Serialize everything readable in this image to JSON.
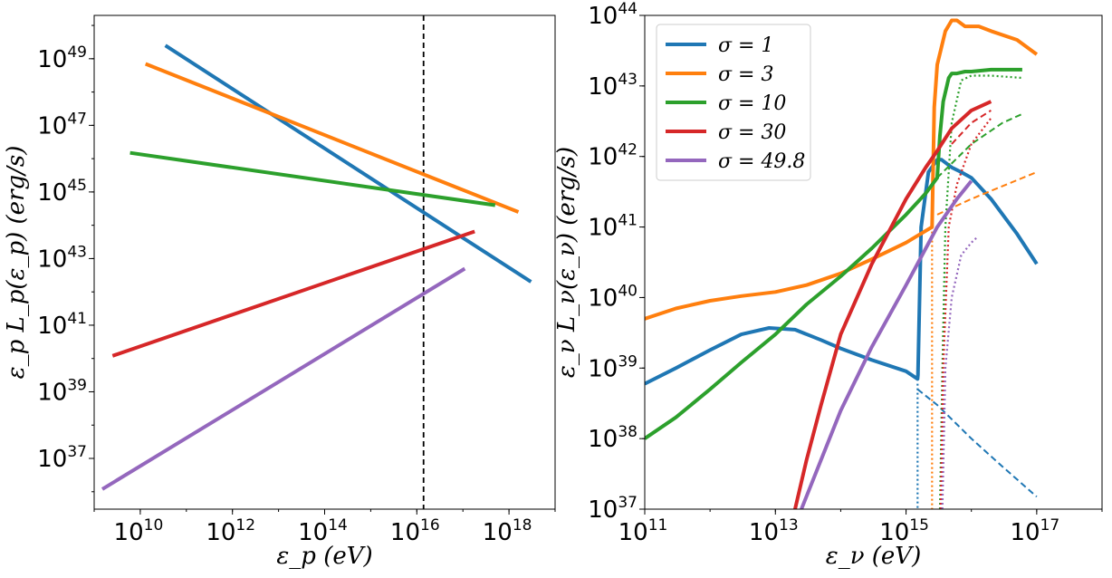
{
  "chart_data": [
    {
      "type": "line",
      "xscale": "log",
      "yscale": "log",
      "xlim": [
        1000000000.0,
        1e+19
      ],
      "ylim": [
        3e+35,
        2e+50
      ],
      "xlabel": "ε_p  (eV)",
      "ylabel": "ε_p L_p(ε_p) (erg/s)",
      "xticks": [
        {
          "base": "10",
          "exp": "10",
          "v": 10000000000.0
        },
        {
          "base": "10",
          "exp": "12",
          "v": 1000000000000.0
        },
        {
          "base": "10",
          "exp": "14",
          "v": 100000000000000.0
        },
        {
          "base": "10",
          "exp": "16",
          "v": 1e+16
        },
        {
          "base": "10",
          "exp": "18",
          "v": 1e+18
        }
      ],
      "yticks": [
        {
          "base": "10",
          "exp": "37",
          "v": 1e+37
        },
        {
          "base": "10",
          "exp": "39",
          "v": 1e+39
        },
        {
          "base": "10",
          "exp": "41",
          "v": 1e+41
        },
        {
          "base": "10",
          "exp": "43",
          "v": 1e+43
        },
        {
          "base": "10",
          "exp": "45",
          "v": 1e+45
        },
        {
          "base": "10",
          "exp": "47",
          "v": 1e+47
        },
        {
          "base": "10",
          "exp": "49",
          "v": 1e+49
        }
      ],
      "vline": {
        "x": 1.4e+16,
        "style": "dashed",
        "color": "#000000"
      },
      "series": [
        {
          "color": "#1f77b4",
          "x": [
            35000000000.0,
            3e+18
          ],
          "y": [
            2.5e+49,
            2e+42
          ]
        },
        {
          "color": "#ff7f0e",
          "x": [
            13000000000.0,
            1.6e+18
          ],
          "y": [
            7e+48,
            2.5e+44
          ]
        },
        {
          "color": "#2ca02c",
          "x": [
            6000000000.0,
            5e+17
          ],
          "y": [
            1.5e+46,
            4e+44
          ]
        },
        {
          "color": "#d62728",
          "x": [
            2500000000.0,
            1.8e+17
          ],
          "y": [
            1.2e+40,
            6.5e+43
          ]
        },
        {
          "color": "#9467bd",
          "x": [
            1500000000.0,
            1.1e+17
          ],
          "y": [
            1.2e+36,
            5e+42
          ]
        }
      ]
    },
    {
      "type": "line",
      "xscale": "log",
      "yscale": "log",
      "xlim": [
        100000000000.0,
        1e+18
      ],
      "ylim": [
        1e+37,
        1e+44
      ],
      "xlabel": "ε_ν  (eV)",
      "ylabel": "ε_ν L_ν(ε_ν) (erg/s)",
      "xticks": [
        {
          "base": "10",
          "exp": "11",
          "v": 100000000000.0
        },
        {
          "base": "10",
          "exp": "13",
          "v": 10000000000000.0
        },
        {
          "base": "10",
          "exp": "15",
          "v": 1000000000000000.0
        },
        {
          "base": "10",
          "exp": "17",
          "v": 1e+17
        }
      ],
      "yticks": [
        {
          "base": "10",
          "exp": "37",
          "v": 1e+37
        },
        {
          "base": "10",
          "exp": "38",
          "v": 1e+38
        },
        {
          "base": "10",
          "exp": "39",
          "v": 1e+39
        },
        {
          "base": "10",
          "exp": "40",
          "v": 1e+40
        },
        {
          "base": "10",
          "exp": "41",
          "v": 1e+41
        },
        {
          "base": "10",
          "exp": "42",
          "v": 1e+42
        },
        {
          "base": "10",
          "exp": "43",
          "v": 1e+43
        },
        {
          "base": "10",
          "exp": "44",
          "v": 1e+44
        }
      ],
      "legend": {
        "location": "top-left",
        "entries": [
          {
            "label": "σ = 1",
            "color": "#1f77b4"
          },
          {
            "label": "σ = 3",
            "color": "#ff7f0e"
          },
          {
            "label": "σ = 10",
            "color": "#2ca02c"
          },
          {
            "label": "σ = 30",
            "color": "#d62728"
          },
          {
            "label": "σ = 49.8",
            "color": "#9467bd"
          }
        ]
      },
      "series": [
        {
          "color": "#1f77b4",
          "style": "solid",
          "x": [
            100000000000.0,
            300000000000.0,
            1000000000000.0,
            3000000000000.0,
            8000000000000.0,
            20000000000000.0,
            50000000000000.0,
            100000000000000.0,
            300000000000000.0,
            1000000000000000.0,
            1500000000000000.0,
            1520000000000000.0,
            1700000000000000.0,
            2200000000000000.0,
            3000000000000000.0,
            3500000000000000.0,
            5000000000000000.0,
            7000000000000000.0,
            1e+16,
            2e+16,
            5e+16,
            1e+17
          ],
          "y": [
            6e+38,
            1e+39,
            1.8e+39,
            3e+39,
            3.7e+39,
            3.5e+39,
            2.5e+39,
            1.9e+39,
            1.3e+39,
            9e+38,
            7e+38,
            8e+38,
            1e+41,
            6e+41,
            9e+41,
            9e+41,
            7e+41,
            6e+41,
            5e+41,
            2.5e+41,
            8e+40,
            3e+40
          ]
        },
        {
          "color": "#1f77b4",
          "style": "dashed",
          "x": [
            1500000000000000.0,
            3000000000000000.0,
            1e+16,
            3e+16,
            1e+17
          ],
          "y": [
            5e+38,
            3e+38,
            1e+38,
            4e+37,
            1.5e+37
          ]
        },
        {
          "color": "#1f77b4",
          "style": "dotted",
          "x": [
            1500000000000000.0,
            1500000000000000.0
          ],
          "y": [
            6e+38,
            1e+37
          ]
        },
        {
          "color": "#ff7f0e",
          "style": "solid",
          "x": [
            100000000000.0,
            300000000000.0,
            1000000000000.0,
            3000000000000.0,
            10000000000000.0,
            30000000000000.0,
            100000000000000.0,
            300000000000000.0,
            1000000000000000.0,
            2500000000000000.0,
            2700000000000000.0,
            3000000000000000.0,
            4000000000000000.0,
            5000000000000000.0,
            6000000000000000.0,
            8000000000000000.0,
            1e+16,
            1.3e+16,
            2e+16,
            5e+16,
            1e+17
          ],
          "y": [
            5e+39,
            7e+39,
            9e+39,
            1.05e+40,
            1.2e+40,
            1.5e+40,
            2.2e+40,
            3.5e+40,
            6e+40,
            1e+41,
            5e+42,
            2e+43,
            6e+43,
            8.5e+43,
            8.5e+43,
            7e+43,
            7e+43,
            7e+43,
            6e+43,
            4.5e+43,
            2.8e+43
          ]
        },
        {
          "color": "#ff7f0e",
          "style": "dashed",
          "x": [
            3000000000000000.0,
            1e+16,
            3e+16,
            1e+17
          ],
          "y": [
            1.5e+41,
            2.5e+41,
            3.8e+41,
            6e+41
          ]
        },
        {
          "color": "#ff7f0e",
          "style": "dotted",
          "x": [
            2500000000000000.0,
            2500000000000000.0
          ],
          "y": [
            1e+41,
            1e+37
          ]
        },
        {
          "color": "#2ca02c",
          "style": "solid",
          "x": [
            100000000000.0,
            300000000000.0,
            1000000000000.0,
            3000000000000.0,
            10000000000000.0,
            30000000000000.0,
            100000000000000.0,
            300000000000000.0,
            1000000000000000.0,
            2000000000000000.0,
            3000000000000000.0,
            3300000000000000.0,
            3700000000000000.0,
            4500000000000000.0,
            5000000000000000.0,
            6000000000000000.0,
            8000000000000000.0,
            1e+16,
            2e+16,
            6e+16
          ],
          "y": [
            1e+38,
            2e+38,
            5e+38,
            1.2e+39,
            3e+39,
            8e+39,
            2e+40,
            5e+40,
            1.5e+41,
            3e+41,
            5e+41,
            2e+42,
            6e+42,
            1.3e+43,
            1.5e+43,
            1.5e+43,
            1.6e+43,
            1.6e+43,
            1.7e+43,
            1.7e+43
          ]
        },
        {
          "color": "#2ca02c",
          "style": "dashed",
          "x": [
            3000000000000000.0,
            1e+16,
            3e+16,
            6e+16
          ],
          "y": [
            5e+41,
            1.5e+42,
            3e+42,
            4e+42
          ]
        },
        {
          "color": "#2ca02c",
          "style": "dotted",
          "x": [
            3300000000000000.0,
            3600000000000000.0,
            4000000000000000.0,
            5000000000000000.0,
            7000000000000000.0,
            1e+16,
            2e+16,
            6e+16
          ],
          "y": [
            1e+37,
            1e+39,
            1e+41,
            3e+42,
            1.2e+43,
            1.4e+43,
            1.4e+43,
            1.3e+43
          ]
        },
        {
          "color": "#d62728",
          "style": "solid",
          "x": [
            20000000000000.0,
            30000000000000.0,
            50000000000000.0,
            100000000000000.0,
            300000000000000.0,
            1000000000000000.0,
            2000000000000000.0,
            3000000000000000.0,
            5000000000000000.0,
            1e+16,
            2e+16
          ],
          "y": [
            1e+37,
            5e+37,
            3e+38,
            3e+39,
            3e+40,
            2.5e+41,
            7e+41,
            1.2e+42,
            2.5e+42,
            4.5e+42,
            6e+42
          ]
        },
        {
          "color": "#d62728",
          "style": "dashed",
          "x": [
            5000000000000000.0,
            1e+16,
            2e+16
          ],
          "y": [
            1.5e+42,
            3e+42,
            4.5e+42
          ]
        },
        {
          "color": "#d62728",
          "style": "dotted",
          "x": [
            3400000000000000.0,
            3700000000000000.0,
            4500000000000000.0,
            6000000000000000.0,
            1e+16,
            2e+16
          ],
          "y": [
            1e+37,
            1e+39,
            1e+41,
            4e+41,
            1.5e+42,
            3.5e+42
          ]
        },
        {
          "color": "#9467bd",
          "style": "solid",
          "x": [
            25000000000000.0,
            50000000000000.0,
            100000000000000.0,
            300000000000000.0,
            1000000000000000.0,
            3000000000000000.0,
            6000000000000000.0,
            1e+16
          ],
          "y": [
            1e+37,
            5e+37,
            2.5e+38,
            2e+39,
            1.5e+40,
            1e+41,
            2.5e+41,
            4.5e+41
          ]
        },
        {
          "color": "#9467bd",
          "style": "dotted",
          "x": [
            3600000000000000.0,
            4000000000000000.0,
            5000000000000000.0,
            7000000000000000.0,
            1e+16,
            1.2e+16
          ],
          "y": [
            1e+37,
            1e+39,
            1e+40,
            4e+40,
            6e+40,
            7e+40
          ]
        }
      ]
    }
  ]
}
